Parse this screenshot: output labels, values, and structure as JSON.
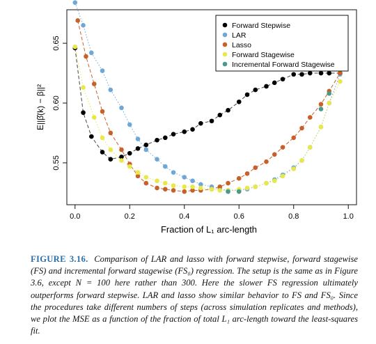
{
  "chart_data": {
    "type": "scatter",
    "xlabel": "Fraction of L₁ arc-length",
    "ylabel": "E||β̂(k) − β||²",
    "xlim": [
      -0.03,
      1.03
    ],
    "ylim": [
      0.515,
      0.678
    ],
    "x_ticks": [
      "0.0",
      "0.2",
      "0.4",
      "0.6",
      "0.8",
      "1.0"
    ],
    "x_tick_values": [
      0.0,
      0.2,
      0.4,
      0.6,
      0.8,
      1.0
    ],
    "y_ticks": [
      "0.55",
      "0.60",
      "0.65"
    ],
    "y_tick_values": [
      0.55,
      0.6,
      0.65
    ],
    "legend_position": "top-right",
    "grid": false,
    "series": [
      {
        "name": "Forward Stepwise",
        "color": "#000000",
        "line": "dashed",
        "x": [
          0.0,
          0.03,
          0.06,
          0.1,
          0.13,
          0.17,
          0.2,
          0.23,
          0.26,
          0.3,
          0.33,
          0.36,
          0.4,
          0.43,
          0.46,
          0.5,
          0.53,
          0.56,
          0.6,
          0.63,
          0.66,
          0.7,
          0.73,
          0.76,
          0.8,
          0.83,
          0.86,
          0.9,
          0.93,
          0.97
        ],
        "y": [
          0.646,
          0.592,
          0.572,
          0.559,
          0.553,
          0.555,
          0.558,
          0.562,
          0.565,
          0.569,
          0.571,
          0.574,
          0.576,
          0.578,
          0.583,
          0.585,
          0.59,
          0.594,
          0.601,
          0.607,
          0.611,
          0.614,
          0.617,
          0.62,
          0.624,
          0.624,
          0.625,
          0.625,
          0.625,
          0.625
        ]
      },
      {
        "name": "LAR",
        "color": "#6fa8d6",
        "line": "dotted",
        "x": [
          0.0,
          0.03,
          0.06,
          0.1,
          0.13,
          0.17,
          0.2,
          0.23,
          0.26,
          0.3,
          0.33,
          0.36,
          0.4,
          0.43,
          0.46,
          0.5,
          0.53,
          0.56,
          0.6,
          0.63,
          0.66,
          0.7,
          0.73,
          0.76,
          0.8,
          0.83,
          0.86,
          0.9,
          0.93,
          0.97
        ],
        "y": [
          0.684,
          0.665,
          0.642,
          0.627,
          0.611,
          0.596,
          0.582,
          0.57,
          0.561,
          0.553,
          0.547,
          0.542,
          0.538,
          0.535,
          0.532,
          0.53,
          0.528,
          0.527,
          0.527,
          0.528,
          0.53,
          0.533,
          0.536,
          0.54,
          0.546,
          0.552,
          0.563,
          0.58,
          0.6,
          0.624
        ]
      },
      {
        "name": "Lasso",
        "color": "#c6612a",
        "line": "dashed",
        "x": [
          0.01,
          0.04,
          0.07,
          0.1,
          0.13,
          0.17,
          0.2,
          0.23,
          0.26,
          0.3,
          0.33,
          0.36,
          0.4,
          0.43,
          0.46,
          0.5,
          0.53,
          0.56,
          0.6,
          0.63,
          0.66,
          0.7,
          0.73,
          0.76,
          0.8,
          0.83,
          0.86,
          0.9,
          0.93,
          0.97
        ],
        "y": [
          0.669,
          0.639,
          0.616,
          0.593,
          0.575,
          0.561,
          0.549,
          0.539,
          0.533,
          0.529,
          0.528,
          0.527,
          0.526,
          0.527,
          0.527,
          0.528,
          0.53,
          0.533,
          0.537,
          0.541,
          0.546,
          0.551,
          0.557,
          0.563,
          0.571,
          0.579,
          0.588,
          0.599,
          0.61,
          0.625
        ]
      },
      {
        "name": "Forward Stagewise",
        "color": "#e8e84a",
        "line": "dotted",
        "x": [
          0.0,
          0.03,
          0.07,
          0.1,
          0.13,
          0.17,
          0.2,
          0.23,
          0.26,
          0.3,
          0.33,
          0.36,
          0.4,
          0.43,
          0.46,
          0.5,
          0.53,
          0.56,
          0.6,
          0.63,
          0.66,
          0.7,
          0.73,
          0.76,
          0.8,
          0.83,
          0.86,
          0.9,
          0.93,
          0.97
        ],
        "y": [
          0.647,
          0.613,
          0.588,
          0.571,
          0.561,
          0.552,
          0.547,
          0.542,
          0.538,
          0.535,
          0.533,
          0.531,
          0.53,
          0.53,
          0.529,
          0.528,
          0.527,
          0.527,
          0.528,
          0.529,
          0.53,
          0.533,
          0.535,
          0.539,
          0.545,
          0.552,
          0.563,
          0.58,
          0.6,
          0.618
        ]
      },
      {
        "name": "Incremental Forward Stagewise",
        "color": "#4a9a8c",
        "line": "solid",
        "x": [
          0.56,
          0.6,
          0.9,
          0.93
        ],
        "y": [
          0.526,
          0.526,
          0.595,
          0.608
        ]
      }
    ]
  },
  "caption": {
    "label": "FIGURE 3.16.",
    "text": "Comparison of LAR and lasso with forward stepwise, forward stagewise (FS) and incremental forward stagewise (FS₀) regression. The setup is the same as in Figure 3.6, except N = 100 here rather than 300. Here the slower FS regression ultimately outperforms forward stepwise. LAR and lasso show similar behavior to FS and FS₀. Since the procedures take different numbers of steps (across simulation replicates and methods), we plot the MSE as a function of the fraction of total L₁ arc-length toward the least-squares fit."
  }
}
